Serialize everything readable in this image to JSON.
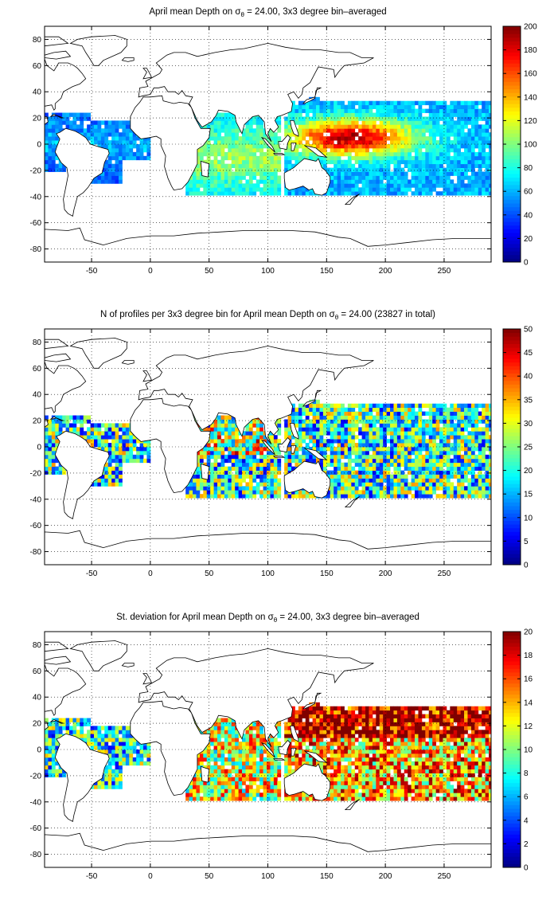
{
  "chart_data": [
    {
      "type": "heatmap",
      "title": "April mean Depth on σθ = 24.00, 3x3 degree bin–averaged",
      "title_parts": {
        "before": "April mean Depth on ",
        "sym": "σ",
        "sub": "θ",
        "after": " = 24.00, 3x3 degree bin–averaged"
      },
      "xlim": [
        -90,
        290
      ],
      "ylim": [
        -90,
        90
      ],
      "xticks": [
        -50,
        0,
        50,
        100,
        150,
        200,
        250
      ],
      "yticks": [
        -80,
        -60,
        -40,
        -20,
        0,
        20,
        40,
        60,
        80
      ],
      "grid": true,
      "colorbar": {
        "min": 0,
        "max": 200,
        "ticks": [
          0,
          20,
          40,
          60,
          80,
          100,
          120,
          140,
          160,
          180,
          200
        ],
        "colormap": "jet"
      }
    },
    {
      "type": "heatmap",
      "title": "N of profiles per 3x3 degree bin for April mean Depth on σθ = 24.00 (23827 in total)",
      "title_parts": {
        "before": "N of profiles per 3x3 degree bin for April mean Depth on ",
        "sym": "σ",
        "sub": "θ",
        "after": " = 24.00 (23827 in total)"
      },
      "xlim": [
        -90,
        290
      ],
      "ylim": [
        -90,
        90
      ],
      "xticks": [
        -50,
        0,
        50,
        100,
        150,
        200,
        250
      ],
      "yticks": [
        -80,
        -60,
        -40,
        -20,
        0,
        20,
        40,
        60,
        80
      ],
      "grid": true,
      "colorbar": {
        "min": 0,
        "max": 50,
        "ticks": [
          0,
          5,
          10,
          15,
          20,
          25,
          30,
          35,
          40,
          45,
          50
        ],
        "colormap": "jet"
      }
    },
    {
      "type": "heatmap",
      "title": "St. deviation for April mean Depth on σθ = 24.00, 3x3 degree bin–averaged",
      "title_parts": {
        "before": "St. deviation for April mean Depth on ",
        "sym": "σ",
        "sub": "θ",
        "after": " = 24.00, 3x3 degree bin–averaged"
      },
      "xlim": [
        -90,
        290
      ],
      "ylim": [
        -90,
        90
      ],
      "xticks": [
        -50,
        0,
        50,
        100,
        150,
        200,
        250
      ],
      "yticks": [
        -80,
        -60,
        -40,
        -20,
        0,
        20,
        40,
        60,
        80
      ],
      "grid": true,
      "colorbar": {
        "min": 0,
        "max": 20,
        "ticks": [
          0,
          2,
          4,
          6,
          8,
          10,
          12,
          14,
          16,
          18,
          20
        ],
        "colormap": "jet"
      }
    }
  ]
}
